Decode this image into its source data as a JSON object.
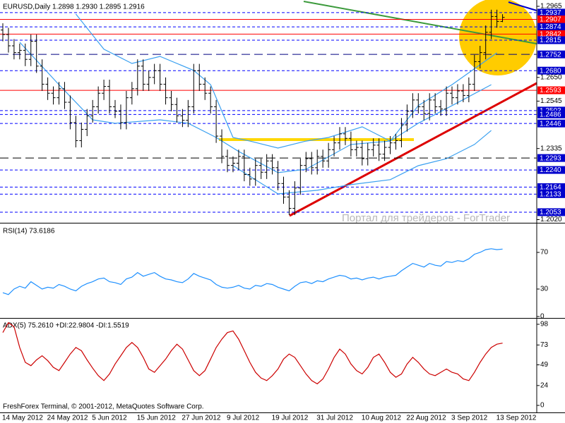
{
  "watermark": "Портал для трейдеров - ForTrader",
  "footer": "FreshForex Terminal, © 2001-2012, MetaQuotes Software Corp.",
  "chart_data": [
    {
      "type": "ohlc",
      "title": "EURUSD,Daily  1.2898 1.2930 1.2895 1.2916",
      "color": "#000000",
      "ylim": [
        1.2006,
        1.2993
      ],
      "yticks": [
        1.2965,
        {
          "value": 1.265,
          "label": "1.2650"
        },
        1.2545,
        1.2335,
        {
          "value": 1.202,
          "label": "1.2020"
        }
      ],
      "open": [
        1.286,
        1.284,
        1.279,
        1.276,
        1.277,
        1.273,
        1.281,
        1.27,
        1.262,
        1.258,
        1.256,
        1.26,
        1.254,
        1.245,
        1.237,
        1.242,
        1.248,
        1.252,
        1.258,
        1.261,
        1.252,
        1.25,
        1.245,
        1.256,
        1.26,
        1.27,
        1.262,
        1.265,
        1.268,
        1.262,
        1.256,
        1.253,
        1.248,
        1.246,
        1.252,
        1.268,
        1.262,
        1.258,
        1.252,
        1.239,
        1.23,
        1.226,
        1.227,
        1.23,
        1.222,
        1.22,
        1.226,
        1.223,
        1.228,
        1.225,
        1.218,
        1.212,
        1.207,
        1.216,
        1.226,
        1.229,
        1.225,
        1.23,
        1.228,
        1.233,
        1.236,
        1.24,
        1.238,
        1.233,
        1.234,
        1.229,
        1.233,
        1.235,
        1.231,
        1.234,
        1.236,
        1.237,
        1.244,
        1.25,
        1.255,
        1.252,
        1.249,
        1.255,
        1.252,
        1.251,
        1.258,
        1.256,
        1.259,
        1.257,
        1.262,
        1.272,
        1.276,
        1.285,
        1.292,
        1.2898
      ],
      "high": [
        1.289,
        1.287,
        1.282,
        1.28,
        1.28,
        1.284,
        1.284,
        1.273,
        1.265,
        1.261,
        1.263,
        1.263,
        1.257,
        1.248,
        1.245,
        1.251,
        1.255,
        1.261,
        1.264,
        1.264,
        1.255,
        1.253,
        1.259,
        1.263,
        1.273,
        1.273,
        1.268,
        1.271,
        1.271,
        1.265,
        1.259,
        1.256,
        1.251,
        1.255,
        1.271,
        1.271,
        1.265,
        1.261,
        1.255,
        1.242,
        1.233,
        1.23,
        1.233,
        1.233,
        1.225,
        1.229,
        1.229,
        1.231,
        1.231,
        1.228,
        1.221,
        1.215,
        1.219,
        1.229,
        1.232,
        1.232,
        1.233,
        1.233,
        1.236,
        1.239,
        1.243,
        1.243,
        1.241,
        1.237,
        1.237,
        1.236,
        1.238,
        1.238,
        1.237,
        1.239,
        1.24,
        1.247,
        1.253,
        1.258,
        1.258,
        1.255,
        1.258,
        1.258,
        1.255,
        1.261,
        1.261,
        1.262,
        1.262,
        1.265,
        1.275,
        1.279,
        1.288,
        1.295,
        1.295,
        1.293
      ],
      "low": [
        1.281,
        1.276,
        1.273,
        1.273,
        1.27,
        1.27,
        1.267,
        1.259,
        1.255,
        1.253,
        1.253,
        1.251,
        1.242,
        1.234,
        1.234,
        1.239,
        1.245,
        1.249,
        1.255,
        1.249,
        1.247,
        1.242,
        1.242,
        1.253,
        1.257,
        1.259,
        1.259,
        1.262,
        1.259,
        1.253,
        1.25,
        1.245,
        1.243,
        1.243,
        1.249,
        1.259,
        1.255,
        1.249,
        1.236,
        1.227,
        1.223,
        1.223,
        1.224,
        1.219,
        1.217,
        1.217,
        1.22,
        1.22,
        1.222,
        1.215,
        1.209,
        1.204,
        1.204,
        1.213,
        1.223,
        1.222,
        1.222,
        1.225,
        1.225,
        1.23,
        1.233,
        1.235,
        1.23,
        1.23,
        1.226,
        1.226,
        1.23,
        1.228,
        1.228,
        1.231,
        1.233,
        1.234,
        1.241,
        1.247,
        1.249,
        1.246,
        1.246,
        1.249,
        1.248,
        1.248,
        1.253,
        1.253,
        1.254,
        1.254,
        1.259,
        1.269,
        1.273,
        1.282,
        1.287,
        1.2895
      ],
      "close": [
        1.284,
        1.279,
        1.276,
        1.277,
        1.273,
        1.281,
        1.27,
        1.262,
        1.258,
        1.256,
        1.26,
        1.254,
        1.245,
        1.237,
        1.242,
        1.248,
        1.252,
        1.258,
        1.261,
        1.252,
        1.25,
        1.245,
        1.256,
        1.26,
        1.27,
        1.262,
        1.265,
        1.268,
        1.262,
        1.256,
        1.253,
        1.248,
        1.246,
        1.252,
        1.268,
        1.262,
        1.258,
        1.252,
        1.239,
        1.23,
        1.226,
        1.227,
        1.23,
        1.222,
        1.22,
        1.226,
        1.223,
        1.228,
        1.225,
        1.218,
        1.212,
        1.207,
        1.216,
        1.226,
        1.229,
        1.225,
        1.23,
        1.228,
        1.233,
        1.236,
        1.24,
        1.238,
        1.233,
        1.234,
        1.229,
        1.233,
        1.235,
        1.231,
        1.234,
        1.236,
        1.237,
        1.244,
        1.25,
        1.255,
        1.252,
        1.249,
        1.255,
        1.252,
        1.251,
        1.258,
        1.256,
        1.259,
        1.257,
        1.262,
        1.272,
        1.276,
        1.285,
        1.292,
        1.2898,
        1.2916
      ],
      "lines": [
        {
          "color": "#3aa0f0",
          "x": [
            13,
            18,
            23,
            28,
            34,
            37,
            41,
            44,
            49,
            54,
            58,
            64,
            69,
            74,
            80,
            88
          ],
          "values": [
            1.2931,
            1.2775,
            1.2712,
            1.2743,
            1.2681,
            1.2618,
            1.2384,
            1.2368,
            1.2337,
            1.2368,
            1.2384,
            1.2431,
            1.2368,
            1.2525,
            1.2618,
            1.2759
          ]
        },
        {
          "color": "#3aa0f0",
          "x": [
            3,
            10,
            16,
            20,
            28,
            33,
            38,
            42,
            49,
            54,
            62,
            69,
            74,
            80,
            87
          ],
          "values": [
            1.2806,
            1.2618,
            1.2462,
            1.2447,
            1.2462,
            1.2447,
            1.2384,
            1.2322,
            1.2228,
            1.2243,
            1.2353,
            1.2368,
            1.2447,
            1.2525,
            1.2618
          ]
        },
        {
          "color": "#3aa0f0",
          "x": [
            41,
            49,
            56,
            62,
            69,
            74,
            79,
            84,
            87
          ],
          "values": [
            1.2259,
            1.2134,
            1.215,
            1.2175,
            1.2197,
            1.2259,
            1.229,
            1.2353,
            1.2415
          ]
        }
      ],
      "levels": [
        {
          "value": 1.2937,
          "label": "1.2937",
          "color": "#0000cc",
          "line_color": "#0000ff",
          "style": "dash"
        },
        {
          "value": 1.2907,
          "label": "1.2907",
          "color": "#ff0000",
          "line_color": "#ff0000",
          "style": "solid"
        },
        {
          "value": 1.2874,
          "label": "1.2874",
          "color": "#0000cc",
          "line_color": "#0000ff",
          "style": "dash"
        },
        {
          "value": 1.2842,
          "label": "1.2842",
          "color": "#ff0000",
          "line_color": "#ff0000",
          "style": "solid"
        },
        {
          "value": 1.2815,
          "label": "1.2815",
          "color": "#0000cc",
          "line_color": "#0000ff",
          "style": "dash"
        },
        {
          "value": 1.2752,
          "label": "1.2752",
          "color": "#0000cc",
          "line_color": "#000080",
          "style": "longdash"
        },
        {
          "value": 1.268,
          "label": "1.2680",
          "color": "#0000cc",
          "line_color": "#0000ff",
          "style": "dash"
        },
        {
          "value": 1.2593,
          "label": "1.2593",
          "color": "#ff0000",
          "line_color": "#ff0000",
          "style": "solid"
        },
        {
          "value": 1.2503,
          "label": "1.2503",
          "color": "#0000cc",
          "line_color": "#0000ff",
          "style": "dash"
        },
        {
          "value": 1.2486,
          "label": "1.2486",
          "color": "#0000cc",
          "line_color": "#0000ff",
          "style": "dash"
        },
        {
          "value": 1.2446,
          "label": "1.2446",
          "color": "#0000cc",
          "line_color": "#0000ff",
          "style": "dash"
        },
        {
          "value": 1.2293,
          "label": "1.2293",
          "color": "#0000cc",
          "line_color": "#000000",
          "style": "longdash"
        },
        {
          "value": 1.224,
          "label": "1.2240",
          "color": "#0000cc",
          "line_color": "#0000ff",
          "style": "dash"
        },
        {
          "value": 1.2164,
          "label": "1.2164",
          "color": "#0000cc",
          "line_color": "#0000ff",
          "style": "dash"
        },
        {
          "value": 1.2133,
          "label": "1.2133",
          "color": "#0000cc",
          "line_color": "#0000ff",
          "style": "dash"
        },
        {
          "value": 1.2053,
          "label": "1.2053",
          "color": "#0000cc",
          "line_color": "#0000ff",
          "style": "dash"
        }
      ]
    },
    {
      "type": "line",
      "title": "RSI(14) 73.6186",
      "color": "#1e90ff",
      "ylim": [
        -0.8,
        100.8
      ],
      "yticks": [
        70,
        30,
        0
      ],
      "values": [
        26,
        24,
        30,
        33,
        31,
        38,
        34,
        30,
        32,
        31,
        35,
        33,
        30,
        28,
        33,
        36,
        38,
        41,
        42,
        38,
        37,
        35,
        41,
        43,
        48,
        44,
        46,
        48,
        44,
        41,
        40,
        38,
        37,
        41,
        47,
        44,
        42,
        40,
        35,
        32,
        31,
        32,
        34,
        31,
        30,
        34,
        33,
        36,
        35,
        32,
        30,
        28,
        33,
        37,
        38,
        36,
        39,
        38,
        41,
        43,
        45,
        44,
        41,
        42,
        40,
        42,
        43,
        41,
        43,
        44,
        45,
        50,
        54,
        58,
        56,
        54,
        58,
        56,
        55,
        60,
        59,
        61,
        60,
        63,
        68,
        70,
        73,
        74,
        73,
        73.6186
      ]
    },
    {
      "type": "line",
      "title": "ADX(5) 75.2610 +DI:22.9804 -DI:1.5519",
      "color": "#cc0000",
      "ylim": [
        -8.5,
        104.8
      ],
      "yticks": [
        98,
        73,
        49,
        24,
        0
      ],
      "values": [
        88,
        100,
        95,
        70,
        52,
        48,
        55,
        60,
        54,
        46,
        42,
        52,
        62,
        70,
        66,
        55,
        45,
        36,
        30,
        38,
        50,
        60,
        70,
        76,
        70,
        58,
        44,
        40,
        48,
        56,
        66,
        74,
        68,
        55,
        42,
        36,
        42,
        56,
        70,
        80,
        88,
        90,
        80,
        66,
        52,
        40,
        33,
        30,
        36,
        44,
        56,
        62,
        58,
        48,
        38,
        30,
        26,
        32,
        44,
        58,
        68,
        62,
        50,
        42,
        38,
        46,
        58,
        62,
        52,
        40,
        34,
        38,
        50,
        58,
        52,
        44,
        38,
        36,
        40,
        44,
        40,
        38,
        32,
        30,
        40,
        52,
        62,
        70,
        74,
        75.261
      ],
      "categories": [
        "14 May 2012",
        null,
        null,
        null,
        null,
        null,
        null,
        null,
        "24 May 2012",
        null,
        null,
        null,
        null,
        null,
        null,
        null,
        "5 Jun 2012",
        null,
        null,
        null,
        null,
        null,
        null,
        null,
        "15 Jun 2012",
        null,
        null,
        null,
        null,
        null,
        null,
        null,
        "27 Jun 2012",
        null,
        null,
        null,
        null,
        null,
        null,
        null,
        "9 Jul 2012",
        null,
        null,
        null,
        null,
        null,
        null,
        null,
        "19 Jul 2012",
        null,
        null,
        null,
        null,
        null,
        null,
        null,
        "31 Jul 2012",
        null,
        null,
        null,
        null,
        null,
        null,
        null,
        "10 Aug 2012",
        null,
        null,
        null,
        null,
        null,
        null,
        null,
        "22 Aug 2012",
        null,
        null,
        null,
        null,
        null,
        null,
        null,
        "3 Sep 2012",
        null,
        null,
        null,
        null,
        null,
        null,
        null,
        "13 Sep 2012",
        null
      ]
    }
  ]
}
